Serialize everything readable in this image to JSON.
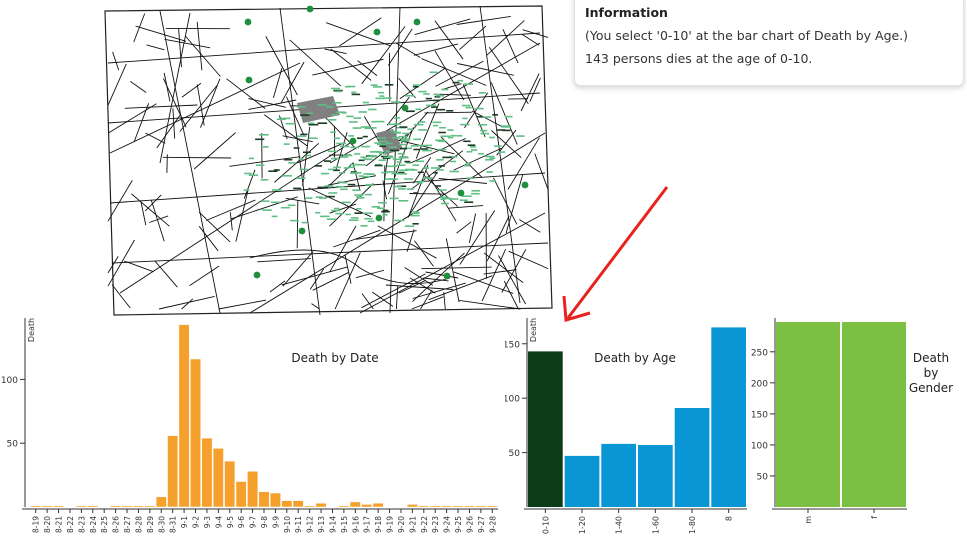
{
  "colors": {
    "swatch": "#7b0b80",
    "date_bar": "#f5a02c",
    "age_bar": "#0a96d4",
    "age_selected": "#0c3d17",
    "gender_bar": "#7cc043",
    "pump": "#1e8f3a",
    "death_mark": "#5fbf85",
    "arrow": "#e8231f",
    "building": "#808080"
  },
  "icons": {
    "pump": "water-pump-icon",
    "death": "death-marker-icon"
  },
  "info": {
    "title": "Information",
    "line1": "(You select '0-10' at the bar chart of Death by Age.)",
    "line2": "143 persons dies at the age of 0-10."
  },
  "chart_data": [
    {
      "id": "death-by-date",
      "type": "bar",
      "title": "Death by Date",
      "ylabel": "Death",
      "ylim": [
        0,
        145
      ],
      "yticks": [
        50,
        100
      ],
      "categories": [
        "8-19",
        "8-20",
        "8-21",
        "8-22",
        "8-23",
        "8-24",
        "8-25",
        "8-26",
        "8-27",
        "8-28",
        "8-29",
        "8-30",
        "8-31",
        "9-1",
        "9-2",
        "9-3",
        "9-4",
        "9-5",
        "9-6",
        "9-7",
        "9-8",
        "9-9",
        "9-10",
        "9-11",
        "9-12",
        "9-13",
        "9-14",
        "9-15",
        "9-16",
        "9-17",
        "9-18",
        "9-19",
        "9-20",
        "9-21",
        "9-22",
        "9-23",
        "9-24",
        "9-25",
        "9-26",
        "9-27",
        "9-28"
      ],
      "tick_labels": [
        "8-19",
        "8-20",
        "8-21",
        "8-22",
        "8-23",
        "8-24",
        "8-25",
        "8-26",
        "8-27",
        "8-28",
        "8-29",
        "8-30",
        "8-31",
        "9-1",
        "9-2",
        "9-3",
        "9-4",
        "9-5",
        "9-6",
        "9-7",
        "9-8",
        "9-9",
        "9-10",
        "9-11",
        "9-12",
        "9-13",
        "9-14",
        "9-15",
        "9-16",
        "9-17",
        "9-18",
        "9-19",
        "9-20",
        "9-21",
        "9-22",
        "9-23",
        "9-24",
        "9-25",
        "9-26",
        "9-27",
        "9-28"
      ],
      "values": [
        1,
        1,
        1,
        0,
        1,
        1,
        0,
        1,
        1,
        1,
        1,
        8,
        56,
        143,
        116,
        54,
        46,
        36,
        20,
        28,
        12,
        11,
        5,
        5,
        1,
        3,
        0,
        1,
        4,
        2,
        3,
        0,
        0,
        2,
        1,
        1,
        1,
        1,
        1,
        1,
        1
      ]
    },
    {
      "id": "death-by-age",
      "type": "bar",
      "title": "Death by Age",
      "ylabel": "Death",
      "ylim": [
        0,
        170
      ],
      "yticks": [
        50,
        100,
        150
      ],
      "categories": [
        "0-10",
        "11-20",
        "21-40",
        "41-60",
        "61-80",
        "81-"
      ],
      "tick_labels": [
        "0-10",
        "1-20",
        "1-40",
        "1-60",
        "1-80",
        "8"
      ],
      "values": [
        143,
        47,
        58,
        57,
        91,
        165
      ],
      "selected": "0-10"
    },
    {
      "id": "death-by-gender",
      "type": "bar",
      "title": "Death by Gender",
      "title_lines": [
        "Death",
        "by",
        "Gender"
      ],
      "ylim": [
        0,
        298
      ],
      "yticks": [
        50,
        100,
        150,
        200,
        250
      ],
      "categories": [
        "m",
        "f"
      ],
      "tick_labels": [
        "m",
        "f"
      ],
      "values": [
        298,
        298
      ]
    }
  ]
}
